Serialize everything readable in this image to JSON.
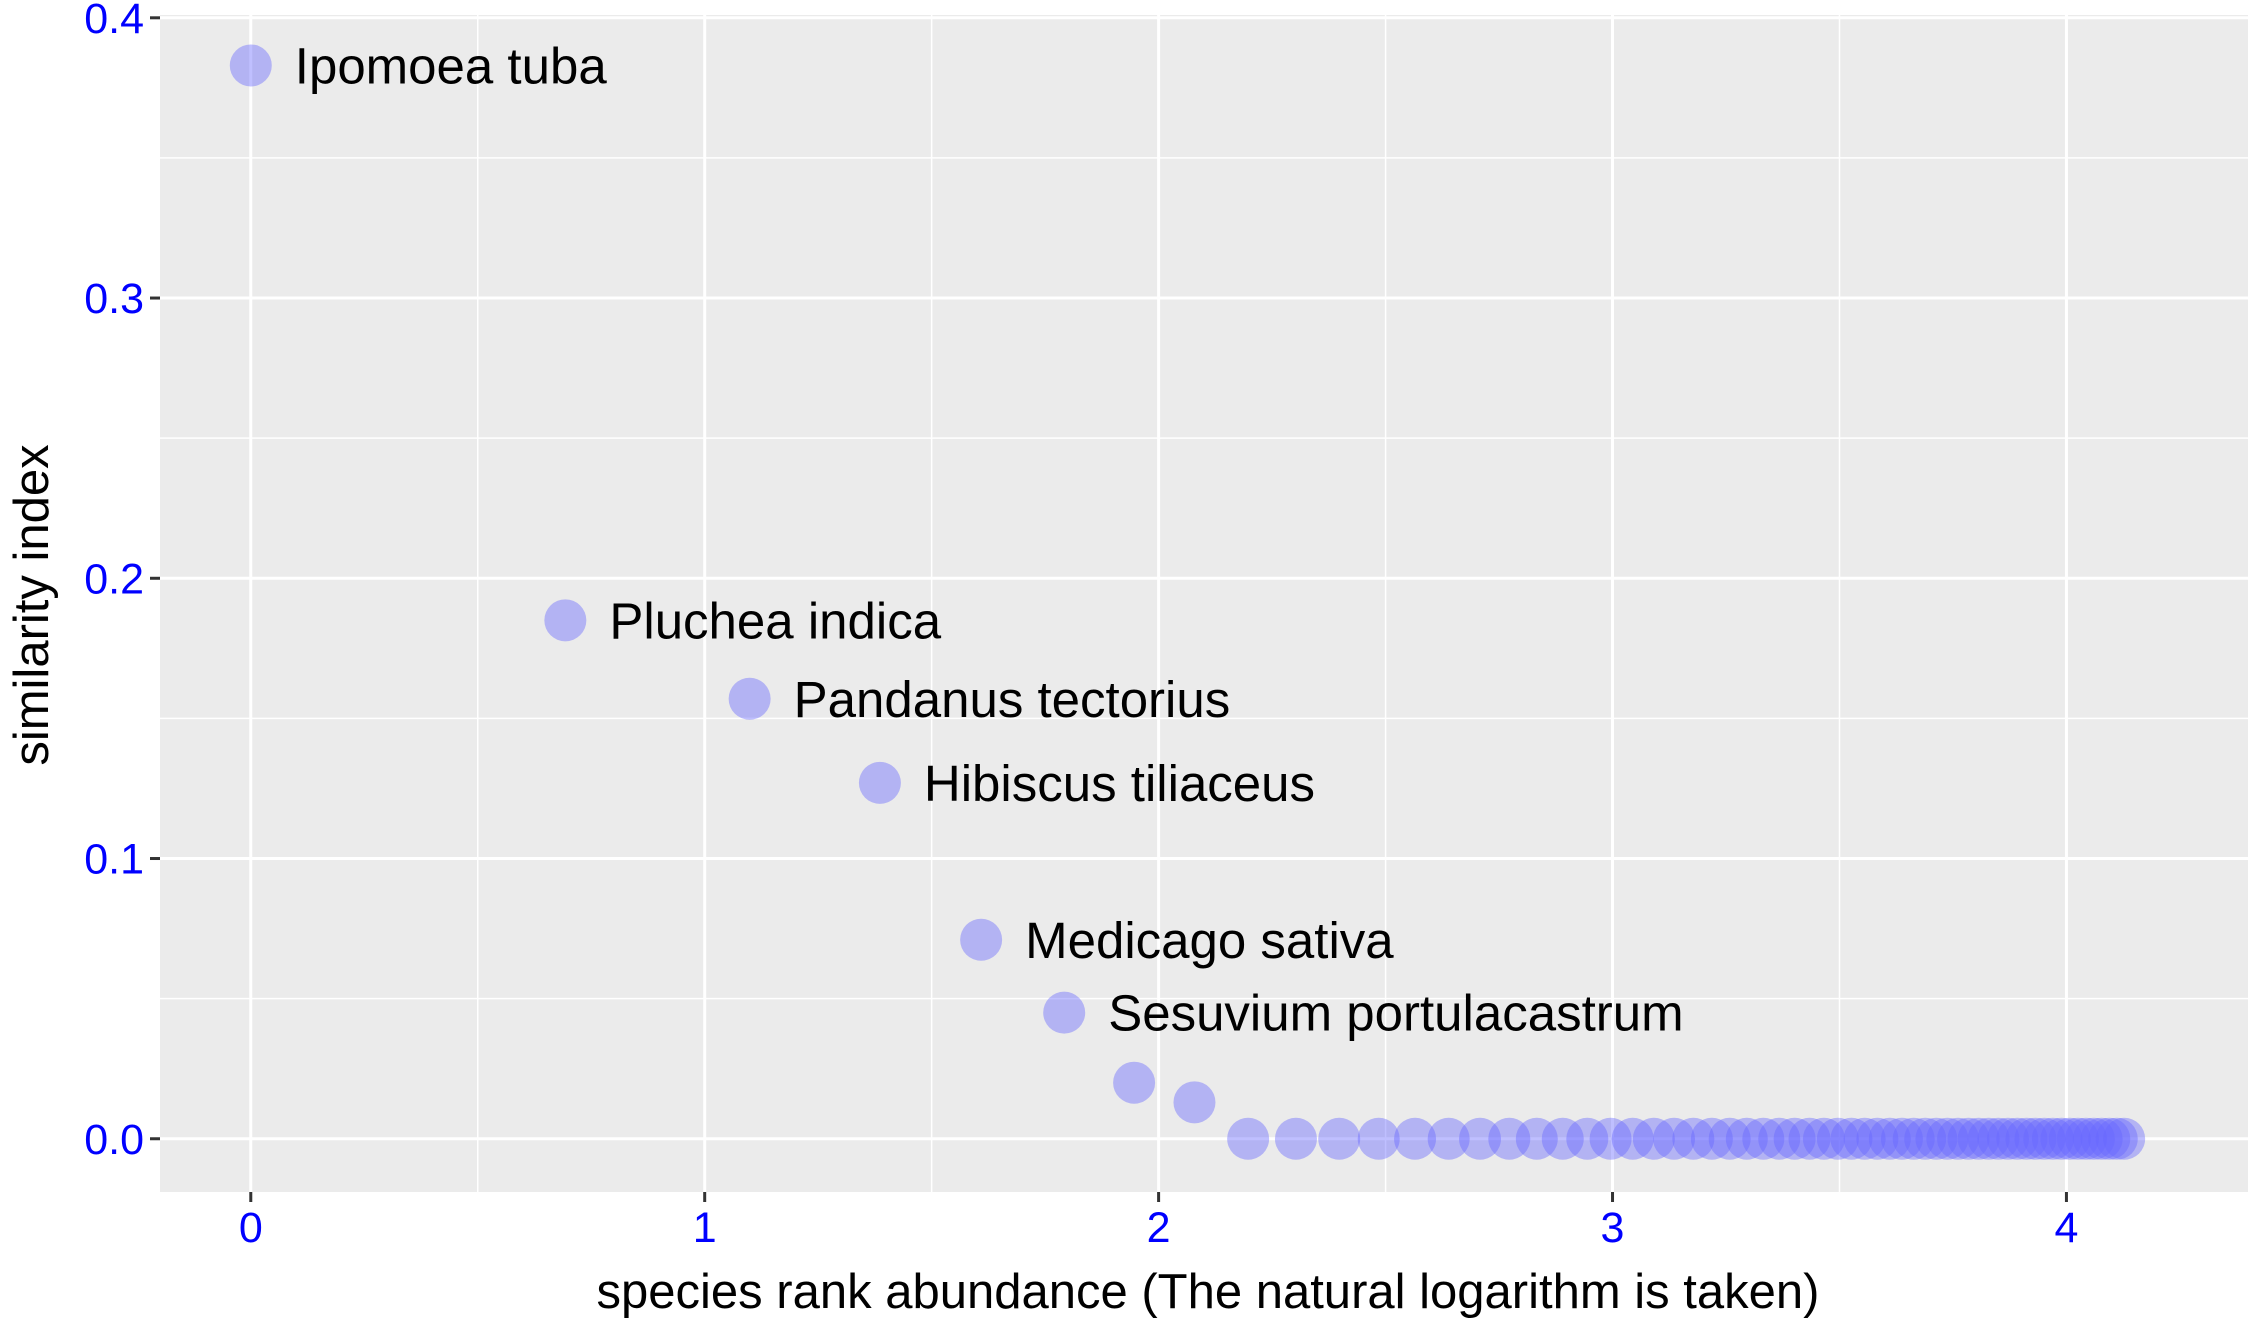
{
  "chart_data": {
    "type": "scatter",
    "title": "",
    "xlabel": "species rank abundance (The natural logarithm is taken)",
    "ylabel": "similarity index",
    "xlim": [
      -0.2,
      4.4
    ],
    "ylim": [
      -0.019,
      0.401
    ],
    "x_ticks": [
      {
        "value": 0,
        "label": "0"
      },
      {
        "value": 1,
        "label": "1"
      },
      {
        "value": 2,
        "label": "2"
      },
      {
        "value": 3,
        "label": "3"
      },
      {
        "value": 4,
        "label": "4"
      }
    ],
    "y_ticks": [
      {
        "value": 0.0,
        "label": "0.0"
      },
      {
        "value": 0.1,
        "label": "0.1"
      },
      {
        "value": 0.2,
        "label": "0.2"
      },
      {
        "value": 0.3,
        "label": "0.3"
      },
      {
        "value": 0.4,
        "label": "0.4"
      }
    ],
    "grid": true,
    "legend": "none",
    "colors": {
      "panel_background": "#ebebeb",
      "grid_line": "#ffffff",
      "point": "#6666ff",
      "tick_label": "#0000ff",
      "axis_title": "#000000"
    },
    "labeled_points": [
      {
        "name": "Ipomoea tuba",
        "x": 0.0,
        "y": 0.383
      },
      {
        "name": "Pluchea indica",
        "x": 0.693,
        "y": 0.185
      },
      {
        "name": "Pandanus tectorius",
        "x": 1.099,
        "y": 0.157
      },
      {
        "name": "Hibiscus tiliaceus",
        "x": 1.386,
        "y": 0.127
      },
      {
        "name": "Medicago sativa",
        "x": 1.609,
        "y": 0.071
      },
      {
        "name": "Sesuvium portulacastrum",
        "x": 1.792,
        "y": 0.045
      }
    ],
    "other_points": [
      {
        "x": 1.946,
        "y": 0.02
      },
      {
        "x": 2.079,
        "y": 0.013
      }
    ],
    "zero_points_rank_range": [
      9,
      62
    ]
  }
}
